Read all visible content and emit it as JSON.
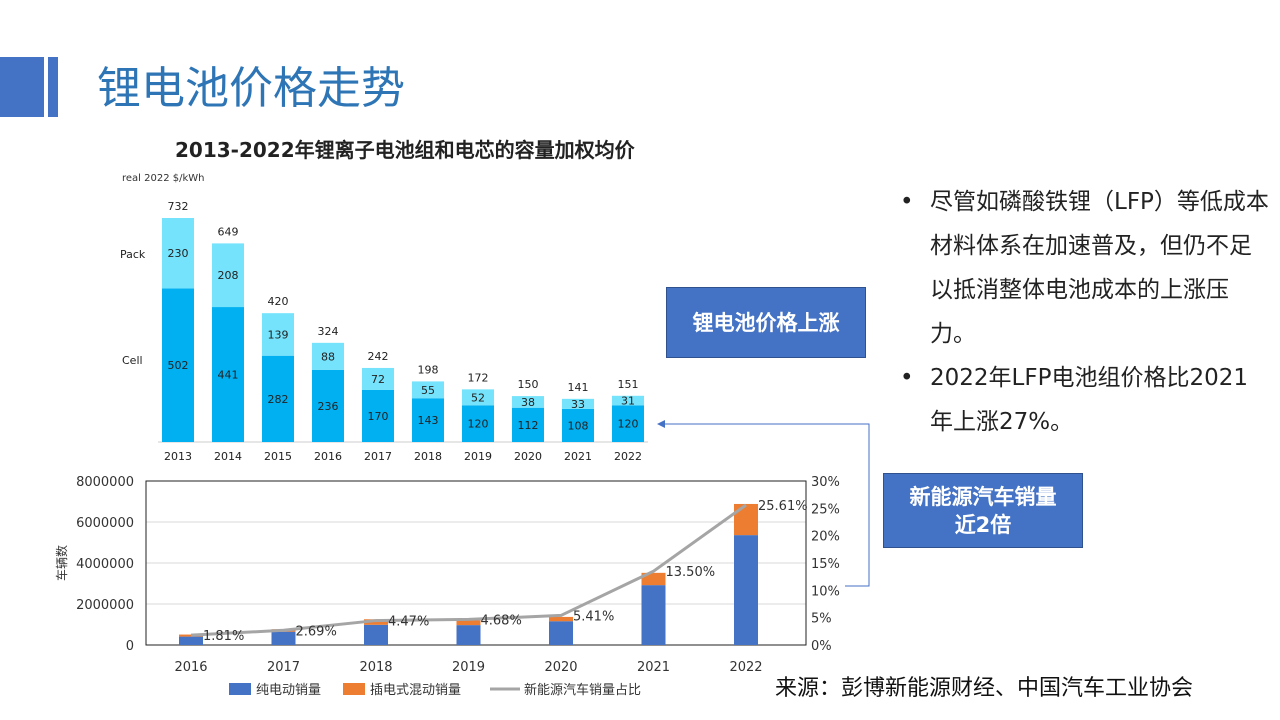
{
  "title": "锂电池价格走势",
  "callouts": [
    "锂电池价格上涨",
    "新能源汽车销量",
    "近2倍"
  ],
  "bullets": [
    "尽管如磷酸铁锂（LFP）等低成本材料体系在加速普及，但仍不足以抵消整体电池成本的上涨压力。",
    "2022年LFP电池组价格比2021年上涨27%。"
  ],
  "source": "来源：彭博新能源财经、中国汽车工业协会",
  "colors": {
    "accent": "#4472c4",
    "title": "#2e75b6",
    "cell": "#00b0f0",
    "pack": "#75e3fb",
    "bev": "#4472c4",
    "phev": "#ed7d31",
    "share": "#a5a5a5"
  },
  "chart_data": [
    {
      "type": "bar",
      "stacked": true,
      "title": "2013-2022年锂离子电池组和电芯的容量加权均价",
      "ylabel": "real 2022 $/kWh",
      "categories": [
        "2013",
        "2014",
        "2015",
        "2016",
        "2017",
        "2018",
        "2019",
        "2020",
        "2021",
        "2022"
      ],
      "series": [
        {
          "name": "Cell",
          "values": [
            502,
            441,
            282,
            236,
            170,
            143,
            120,
            112,
            108,
            120
          ]
        },
        {
          "name": "Pack",
          "values": [
            230,
            208,
            139,
            88,
            72,
            55,
            52,
            38,
            33,
            31
          ]
        }
      ],
      "totals": [
        732,
        649,
        420,
        324,
        242,
        198,
        172,
        150,
        141,
        151
      ]
    },
    {
      "type": "bar",
      "stacked": true,
      "ylabel": "车辆数",
      "ylim": [
        0,
        8000000
      ],
      "y2lim": [
        0,
        30
      ],
      "yticks": [
        "0",
        "2000000",
        "4000000",
        "6000000",
        "8000000"
      ],
      "y2ticks": [
        "0%",
        "5%",
        "10%",
        "15%",
        "20%",
        "25%",
        "30%"
      ],
      "categories": [
        "2016",
        "2017",
        "2018",
        "2019",
        "2020",
        "2021",
        "2022"
      ],
      "series": [
        {
          "name": "纯电动销量",
          "values": [
            410000,
            650000,
            985000,
            970000,
            1160000,
            2920000,
            5360000
          ]
        },
        {
          "name": "插电式混动销量",
          "values": [
            100000,
            120000,
            270000,
            235000,
            210000,
            600000,
            1520000
          ]
        },
        {
          "name": "新能源汽车销量占比",
          "type": "line",
          "axis": "right",
          "values": [
            1.81,
            2.69,
            4.47,
            4.68,
            5.41,
            13.5,
            25.61
          ],
          "labels": [
            "1.81%",
            "2.69%",
            "4.47%",
            "4.68%",
            "5.41%",
            "13.50%",
            "25.61%"
          ]
        }
      ],
      "legend": "bottom",
      "grid": true
    }
  ]
}
